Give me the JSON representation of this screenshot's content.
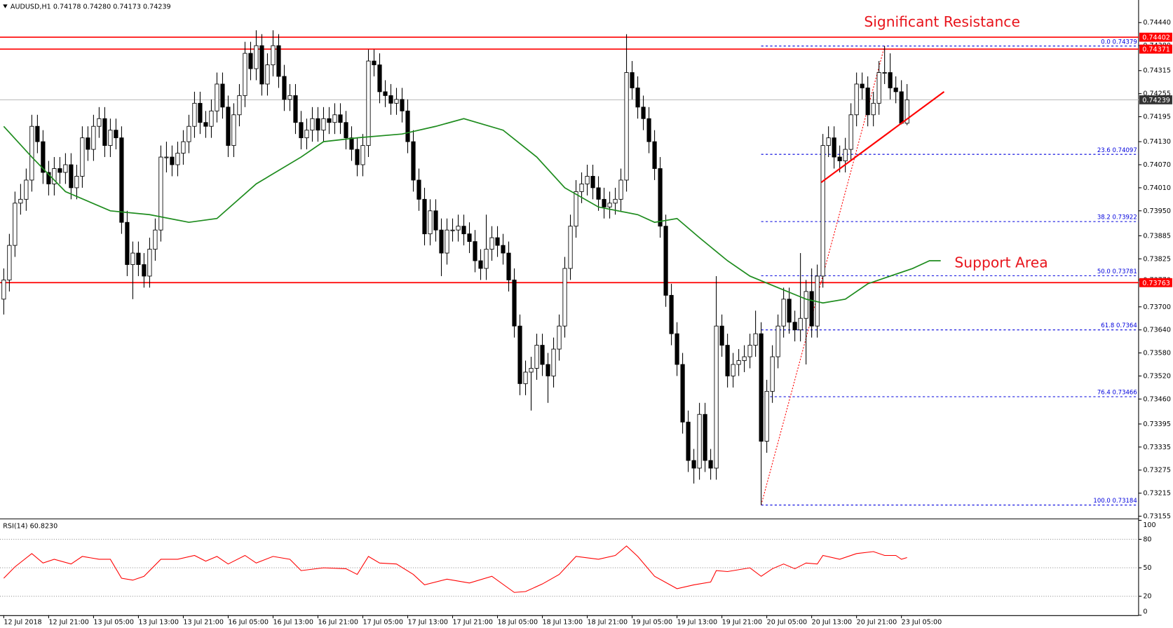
{
  "chart_data": {
    "type": "candlestick",
    "header": "AUDUSD,H1  0.74178 0.74280 0.74173 0.74239",
    "up_color": "#ffffff",
    "down_color": "#000000",
    "level_color": "#ff0000",
    "ma_color": "#1e8c1e",
    "fib_color": "#0000dd",
    "current_color": "#333333",
    "xlim": [
      -0.67,
      202.27
    ],
    "ylim": [
      0.73151,
      0.74493
    ],
    "xticks": [
      {
        "value": 0,
        "label": "12 Jul 2018"
      },
      {
        "value": 8,
        "label": "12 Jul 21:00"
      },
      {
        "value": 16,
        "label": "13 Jul 05:00"
      },
      {
        "value": 24,
        "label": "13 Jul 13:00"
      },
      {
        "value": 32,
        "label": "13 Jul 21:00"
      },
      {
        "value": 40,
        "label": "16 Jul 05:00"
      },
      {
        "value": 48,
        "label": "16 Jul 13:00"
      },
      {
        "value": 56,
        "label": "16 Jul 21:00"
      },
      {
        "value": 64,
        "label": "17 Jul 05:00"
      },
      {
        "value": 72,
        "label": "17 Jul 13:00"
      },
      {
        "value": 80,
        "label": "17 Jul 21:00"
      },
      {
        "value": 88,
        "label": "18 Jul 05:00"
      },
      {
        "value": 96,
        "label": "18 Jul 13:00"
      },
      {
        "value": 104,
        "label": "18 Jul 21:00"
      },
      {
        "value": 112,
        "label": "19 Jul 05:00"
      },
      {
        "value": 120,
        "label": "19 Jul 13:00"
      },
      {
        "value": 128,
        "label": "19 Jul 21:00"
      },
      {
        "value": 136,
        "label": "20 Jul 05:00"
      },
      {
        "value": 144,
        "label": "20 Jul 13:00"
      },
      {
        "value": 152,
        "label": "20 Jul 21:00"
      },
      {
        "value": 160,
        "label": "23 Jul 05:00"
      }
    ],
    "yticks": [
      {
        "value": 0.7444,
        "label": "0.74440"
      },
      {
        "value": 0.7438,
        "label": "0.74380"
      },
      0.74315,
      {
        "value": 0.74255,
        "label": "0.74255"
      },
      0.74195,
      {
        "value": 0.7413,
        "label": "0.74130"
      },
      {
        "value": 0.7407,
        "label": "0.74070"
      },
      {
        "value": 0.7401,
        "label": "0.74010"
      },
      {
        "value": 0.7395,
        "label": "0.73950"
      },
      0.73885,
      0.73825,
      {
        "value": 0.7377,
        "label": "0.73770"
      },
      {
        "value": 0.737,
        "label": "0.73700"
      },
      {
        "value": 0.7364,
        "label": "0.73640"
      },
      {
        "value": 0.7358,
        "label": "0.73580"
      },
      {
        "value": 0.7352,
        "label": "0.73520"
      },
      {
        "value": 0.7346,
        "label": "0.73460"
      },
      0.73395,
      0.73335,
      0.73275,
      0.73215,
      0.73155
    ],
    "candles": [
      [
        0.7372,
        0.738,
        0.7368,
        0.7377
      ],
      [
        0.7377,
        0.7389,
        0.7374,
        0.7386
      ],
      [
        0.7386,
        0.74,
        0.7383,
        0.7397
      ],
      [
        0.7397,
        0.7402,
        0.7394,
        0.7398
      ],
      [
        0.7398,
        0.7406,
        0.7395,
        0.7403
      ],
      [
        0.7403,
        0.742,
        0.74,
        0.7417
      ],
      [
        0.7417,
        0.742,
        0.741,
        0.7413
      ],
      [
        0.7413,
        0.7416,
        0.7402,
        0.7405
      ],
      [
        0.7405,
        0.7408,
        0.7399,
        0.7402
      ],
      [
        0.7402,
        0.7409,
        0.7399,
        0.7406
      ],
      [
        0.7406,
        0.7409,
        0.7402,
        0.7405
      ],
      [
        0.7405,
        0.741,
        0.7402,
        0.7407
      ],
      [
        0.7407,
        0.741,
        0.7398,
        0.7401
      ],
      [
        0.7401,
        0.7407,
        0.7398,
        0.7404
      ],
      [
        0.7404,
        0.7417,
        0.7401,
        0.7414
      ],
      [
        0.7414,
        0.7417,
        0.7408,
        0.7411
      ],
      [
        0.7411,
        0.742,
        0.7408,
        0.7417
      ],
      [
        0.7417,
        0.7422,
        0.7414,
        0.7419
      ],
      [
        0.7419,
        0.7422,
        0.7409,
        0.7412
      ],
      [
        0.7412,
        0.7419,
        0.7409,
        0.7416
      ],
      [
        0.7416,
        0.7419,
        0.7411,
        0.7414
      ],
      [
        0.7414,
        0.7417,
        0.7389,
        0.7392
      ],
      [
        0.7392,
        0.7395,
        0.7378,
        0.7381
      ],
      [
        0.7381,
        0.7387,
        0.7372,
        0.7384
      ],
      [
        0.7384,
        0.7387,
        0.7378,
        0.7381
      ],
      [
        0.7381,
        0.7384,
        0.7375,
        0.7378
      ],
      [
        0.7378,
        0.7388,
        0.7375,
        0.7385
      ],
      [
        0.7385,
        0.7393,
        0.7382,
        0.739
      ],
      [
        0.739,
        0.7412,
        0.7387,
        0.7409
      ],
      [
        0.7409,
        0.7413,
        0.7405,
        0.7409
      ],
      [
        0.7409,
        0.7412,
        0.7404,
        0.7407
      ],
      [
        0.7407,
        0.7413,
        0.7404,
        0.741
      ],
      [
        0.741,
        0.7416,
        0.7407,
        0.7413
      ],
      [
        0.7413,
        0.742,
        0.741,
        0.7417
      ],
      [
        0.7417,
        0.7426,
        0.7414,
        0.7423
      ],
      [
        0.7423,
        0.7426,
        0.7415,
        0.7418
      ],
      [
        0.7418,
        0.7421,
        0.7414,
        0.7417
      ],
      [
        0.7417,
        0.7424,
        0.7414,
        0.7421
      ],
      [
        0.7421,
        0.7431,
        0.7418,
        0.7428
      ],
      [
        0.7428,
        0.7431,
        0.7419,
        0.7422
      ],
      [
        0.7422,
        0.7425,
        0.7409,
        0.7412
      ],
      [
        0.7412,
        0.7423,
        0.7409,
        0.742
      ],
      [
        0.742,
        0.7428,
        0.7417,
        0.7425
      ],
      [
        0.7425,
        0.7439,
        0.7422,
        0.7436
      ],
      [
        0.7436,
        0.7439,
        0.7429,
        0.7432
      ],
      [
        0.7432,
        0.7442,
        0.7429,
        0.7438
      ],
      [
        0.7438,
        0.7441,
        0.7425,
        0.7428
      ],
      [
        0.7428,
        0.7436,
        0.7425,
        0.7433
      ],
      [
        0.7433,
        0.7442,
        0.743,
        0.7438
      ],
      [
        0.7438,
        0.7441,
        0.7427,
        0.743
      ],
      [
        0.743,
        0.7433,
        0.7421,
        0.7424
      ],
      [
        0.7424,
        0.7428,
        0.7421,
        0.7425
      ],
      [
        0.7425,
        0.7428,
        0.7415,
        0.7418
      ],
      [
        0.7418,
        0.7421,
        0.7411,
        0.7414
      ],
      [
        0.7414,
        0.7419,
        0.7411,
        0.7416
      ],
      [
        0.7416,
        0.7422,
        0.7413,
        0.7419
      ],
      [
        0.7419,
        0.7422,
        0.7413,
        0.7416
      ],
      [
        0.7416,
        0.7422,
        0.7413,
        0.7419
      ],
      [
        0.7419,
        0.7422,
        0.7415,
        0.7418
      ],
      [
        0.7418,
        0.7423,
        0.7415,
        0.742
      ],
      [
        0.742,
        0.7423,
        0.7415,
        0.7418
      ],
      [
        0.7418,
        0.7421,
        0.7411,
        0.7414
      ],
      [
        0.7414,
        0.7417,
        0.7408,
        0.7411
      ],
      [
        0.7411,
        0.7414,
        0.7404,
        0.7407
      ],
      [
        0.7407,
        0.7415,
        0.7404,
        0.7412
      ],
      [
        0.7412,
        0.7437,
        0.7409,
        0.7434
      ],
      [
        0.7434,
        0.7437,
        0.743,
        0.7433
      ],
      [
        0.7433,
        0.7436,
        0.7423,
        0.7426
      ],
      [
        0.7426,
        0.7429,
        0.7422,
        0.7425
      ],
      [
        0.7425,
        0.7428,
        0.742,
        0.7423
      ],
      [
        0.7423,
        0.7427,
        0.742,
        0.7424
      ],
      [
        0.7424,
        0.7427,
        0.7418,
        0.7421
      ],
      [
        0.7421,
        0.7424,
        0.741,
        0.7413
      ],
      [
        0.7413,
        0.7416,
        0.74,
        0.7403
      ],
      [
        0.7403,
        0.7406,
        0.7395,
        0.7398
      ],
      [
        0.7398,
        0.7401,
        0.7386,
        0.7389
      ],
      [
        0.7389,
        0.7398,
        0.7386,
        0.7395
      ],
      [
        0.7395,
        0.7398,
        0.7387,
        0.739
      ],
      [
        0.739,
        0.7393,
        0.7378,
        0.7384
      ],
      [
        0.7384,
        0.7393,
        0.7381,
        0.739
      ],
      [
        0.739,
        0.7393,
        0.7387,
        0.739
      ],
      [
        0.739,
        0.7394,
        0.7387,
        0.7391
      ],
      [
        0.7391,
        0.7394,
        0.7386,
        0.7389
      ],
      [
        0.7389,
        0.7392,
        0.7384,
        0.7387
      ],
      [
        0.7387,
        0.739,
        0.7379,
        0.7382
      ],
      [
        0.7382,
        0.7385,
        0.7377,
        0.738
      ],
      [
        0.738,
        0.7394,
        0.7377,
        0.7385
      ],
      [
        0.7385,
        0.7391,
        0.7382,
        0.7388
      ],
      [
        0.7388,
        0.7391,
        0.7383,
        0.7386
      ],
      [
        0.7386,
        0.7389,
        0.7381,
        0.7384
      ],
      [
        0.7384,
        0.7387,
        0.7374,
        0.7377
      ],
      [
        0.7377,
        0.738,
        0.7362,
        0.7365
      ],
      [
        0.7365,
        0.7368,
        0.7347,
        0.735
      ],
      [
        0.735,
        0.7356,
        0.7347,
        0.7353
      ],
      [
        0.7353,
        0.7357,
        0.7343,
        0.7354
      ],
      [
        0.7354,
        0.7363,
        0.7351,
        0.736
      ],
      [
        0.736,
        0.7363,
        0.7352,
        0.7355
      ],
      [
        0.7355,
        0.7358,
        0.7345,
        0.7352
      ],
      [
        0.7352,
        0.7362,
        0.7349,
        0.7359
      ],
      [
        0.7359,
        0.7368,
        0.7356,
        0.7365
      ],
      [
        0.7365,
        0.7383,
        0.7362,
        0.738
      ],
      [
        0.738,
        0.7394,
        0.7377,
        0.7391
      ],
      [
        0.7391,
        0.7403,
        0.7388,
        0.74
      ],
      [
        0.74,
        0.7405,
        0.7397,
        0.7402
      ],
      [
        0.7402,
        0.7407,
        0.7399,
        0.7404
      ],
      [
        0.7404,
        0.7407,
        0.7398,
        0.7401
      ],
      [
        0.7401,
        0.7404,
        0.7395,
        0.7398
      ],
      [
        0.7398,
        0.7401,
        0.7393,
        0.7396
      ],
      [
        0.7396,
        0.74,
        0.7393,
        0.7397
      ],
      [
        0.7397,
        0.7401,
        0.7394,
        0.7398
      ],
      [
        0.7398,
        0.7406,
        0.7395,
        0.7403
      ],
      [
        0.7403,
        0.7441,
        0.74,
        0.7431
      ],
      [
        0.7431,
        0.7434,
        0.7424,
        0.7427
      ],
      [
        0.7427,
        0.743,
        0.7419,
        0.7422
      ],
      [
        0.7422,
        0.7425,
        0.7416,
        0.7419
      ],
      [
        0.7419,
        0.7422,
        0.741,
        0.7413
      ],
      [
        0.7413,
        0.7416,
        0.7403,
        0.7406
      ],
      [
        0.7406,
        0.7409,
        0.7388,
        0.7391
      ],
      [
        0.7391,
        0.7394,
        0.737,
        0.7373
      ],
      [
        0.7373,
        0.7376,
        0.736,
        0.7363
      ],
      [
        0.7363,
        0.7366,
        0.7352,
        0.7355
      ],
      [
        0.7355,
        0.7358,
        0.7337,
        0.734
      ],
      [
        0.734,
        0.7343,
        0.7327,
        0.733
      ],
      [
        0.733,
        0.7333,
        0.7324,
        0.7328
      ],
      [
        0.7328,
        0.7345,
        0.7325,
        0.7342
      ],
      [
        0.7342,
        0.7345,
        0.7327,
        0.733
      ],
      [
        0.733,
        0.7333,
        0.7325,
        0.7328
      ],
      [
        0.7328,
        0.7378,
        0.7325,
        0.7365
      ],
      [
        0.7365,
        0.7368,
        0.7357,
        0.736
      ],
      [
        0.736,
        0.7363,
        0.7349,
        0.7352
      ],
      [
        0.7352,
        0.7358,
        0.7349,
        0.7355
      ],
      [
        0.7355,
        0.7359,
        0.7352,
        0.7356
      ],
      [
        0.7356,
        0.736,
        0.7353,
        0.7357
      ],
      [
        0.7357,
        0.7363,
        0.7354,
        0.736
      ],
      [
        0.736,
        0.7369,
        0.7357,
        0.7363
      ],
      [
        0.7363,
        0.7366,
        0.73184,
        0.7335
      ],
      [
        0.7335,
        0.7351,
        0.7332,
        0.7348
      ],
      [
        0.7348,
        0.736,
        0.7345,
        0.7357
      ],
      [
        0.7357,
        0.7368,
        0.7354,
        0.7365
      ],
      [
        0.7365,
        0.7375,
        0.7362,
        0.7372
      ],
      [
        0.7372,
        0.7375,
        0.7363,
        0.7366
      ],
      [
        0.7366,
        0.7369,
        0.7361,
        0.7364
      ],
      [
        0.7364,
        0.7384,
        0.7361,
        0.7367
      ],
      [
        0.7367,
        0.7377,
        0.7355,
        0.7374
      ],
      [
        0.7374,
        0.738,
        0.7362,
        0.7365
      ],
      [
        0.7365,
        0.7381,
        0.7362,
        0.7378
      ],
      [
        0.7378,
        0.7415,
        0.7375,
        0.7412
      ],
      [
        0.7412,
        0.7417,
        0.7409,
        0.7414
      ],
      [
        0.7414,
        0.7417,
        0.7406,
        0.7409
      ],
      [
        0.7409,
        0.7412,
        0.7405,
        0.7408
      ],
      [
        0.7408,
        0.7414,
        0.7405,
        0.7411
      ],
      [
        0.7411,
        0.7423,
        0.7408,
        0.742
      ],
      [
        0.742,
        0.7431,
        0.7417,
        0.7428
      ],
      [
        0.7428,
        0.7431,
        0.7424,
        0.7427
      ],
      [
        0.7427,
        0.743,
        0.7417,
        0.742
      ],
      [
        0.742,
        0.7426,
        0.7417,
        0.7423
      ],
      [
        0.7423,
        0.7434,
        0.742,
        0.7431
      ],
      [
        0.7431,
        0.74379,
        0.7428,
        0.7431
      ],
      [
        0.7431,
        0.7436,
        0.7424,
        0.7427
      ],
      [
        0.7427,
        0.743,
        0.7423,
        0.7426
      ],
      [
        0.7426,
        0.7429,
        0.74175,
        0.74178
      ],
      [
        0.74178,
        0.7428,
        0.74173,
        0.74239
      ]
    ],
    "ma": {
      "x": [
        0,
        5,
        11,
        19,
        26,
        33,
        38,
        45,
        53,
        57,
        63,
        71,
        77,
        82,
        89,
        95,
        100,
        106,
        113,
        116,
        120,
        124,
        129,
        133,
        138,
        143,
        146,
        150,
        154,
        158,
        162,
        165,
        167
      ],
      "values": [
        0.7417,
        0.7409,
        0.74,
        0.7395,
        0.7394,
        0.7392,
        0.7393,
        0.7402,
        0.7409,
        0.7413,
        0.7414,
        0.7415,
        0.7417,
        0.7419,
        0.7416,
        0.7409,
        0.7401,
        0.7396,
        0.7394,
        0.7392,
        0.7393,
        0.7388,
        0.7382,
        0.7378,
        0.7375,
        0.7372,
        0.7371,
        0.7372,
        0.7376,
        0.7378,
        0.738,
        0.7382,
        0.7382
      ]
    },
    "resistance_levels": [
      0.74402,
      0.74371
    ],
    "support_levels": [
      0.73763
    ],
    "current_price": 0.74239,
    "fibonacci": {
      "from": 135,
      "to": 157,
      "levels": [
        {
          "level": "0.0",
          "price": 0.74379
        },
        {
          "level": "23.6",
          "price": 0.74097
        },
        {
          "level": "38.2",
          "price": 0.73922
        },
        {
          "level": "50.0",
          "price": 0.73781
        },
        {
          "level": "61.8",
          "price": 0.7364
        },
        {
          "level": "76.4",
          "price": 0.73466
        },
        {
          "level": "100.0",
          "price": 0.73184
        }
      ]
    },
    "trendline": {
      "x": [
        145.7,
        167.6
      ],
      "y": [
        0.74024,
        0.7426
      ]
    },
    "annotations": [
      "Significant Resistance",
      "Support Area"
    ],
    "rsi": {
      "title": "RSI(14) 60.8230",
      "color": "#ff0000",
      "ylim": [
        0,
        100
      ],
      "yticks": [
        0,
        20,
        50,
        80,
        100
      ],
      "x": [
        0,
        2,
        5,
        7,
        9,
        12,
        14,
        17,
        19,
        21,
        23,
        25,
        28,
        31,
        34,
        36,
        38,
        40,
        43,
        45,
        48,
        51,
        53,
        57,
        61,
        63,
        65,
        67,
        70,
        73,
        75,
        79,
        83,
        87,
        91,
        93,
        96,
        99,
        102,
        106,
        109,
        111,
        113,
        116,
        120,
        123,
        126,
        127,
        129,
        133,
        135,
        137,
        139,
        141,
        143,
        145,
        146,
        149,
        152,
        155,
        157,
        159,
        160,
        161
      ],
      "values": [
        39,
        51,
        65,
        55,
        59,
        54,
        62,
        59,
        59,
        39,
        37,
        41,
        59,
        59,
        63,
        57,
        62,
        54,
        63,
        55,
        62,
        59,
        47,
        50,
        49,
        43,
        62,
        55,
        54,
        43,
        32,
        38,
        34,
        41,
        24,
        25,
        33,
        43,
        62,
        59,
        63,
        73,
        62,
        41,
        28,
        32,
        35,
        47,
        46,
        50,
        41,
        49,
        54,
        49,
        55,
        54,
        63,
        59,
        65,
        67,
        63,
        63,
        59,
        60.823
      ]
    }
  }
}
